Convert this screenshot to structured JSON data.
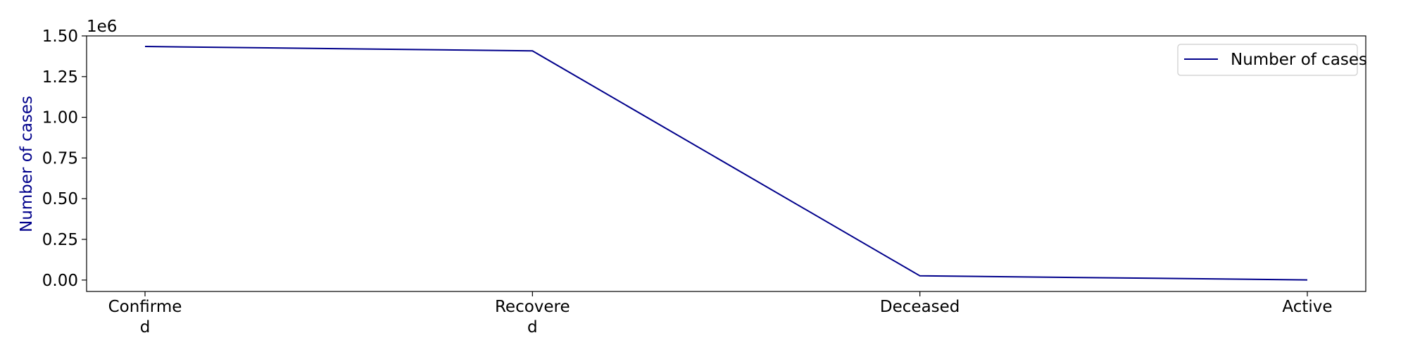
{
  "chart_data": {
    "type": "line",
    "categories": [
      "Confirme\nd",
      "Recovere\nd",
      "Deceased",
      "Active"
    ],
    "series": [
      {
        "name": "Number of cases",
        "values": [
          1435000,
          1408000,
          26000,
          1000
        ],
        "color": "#00008b"
      }
    ],
    "ylabel": "Number of cases",
    "ylabel_color": "#00008b",
    "y_offset_label": "1e6",
    "ylim": [
      -70000,
      1500000
    ],
    "y_ticks": [
      0,
      250000,
      500000,
      750000,
      1000000,
      1250000,
      1500000
    ],
    "y_tick_labels": [
      "0.00",
      "0.25",
      "0.50",
      "0.75",
      "1.00",
      "1.25",
      "1.50"
    ],
    "grid": false,
    "legend_position": "top-right"
  }
}
